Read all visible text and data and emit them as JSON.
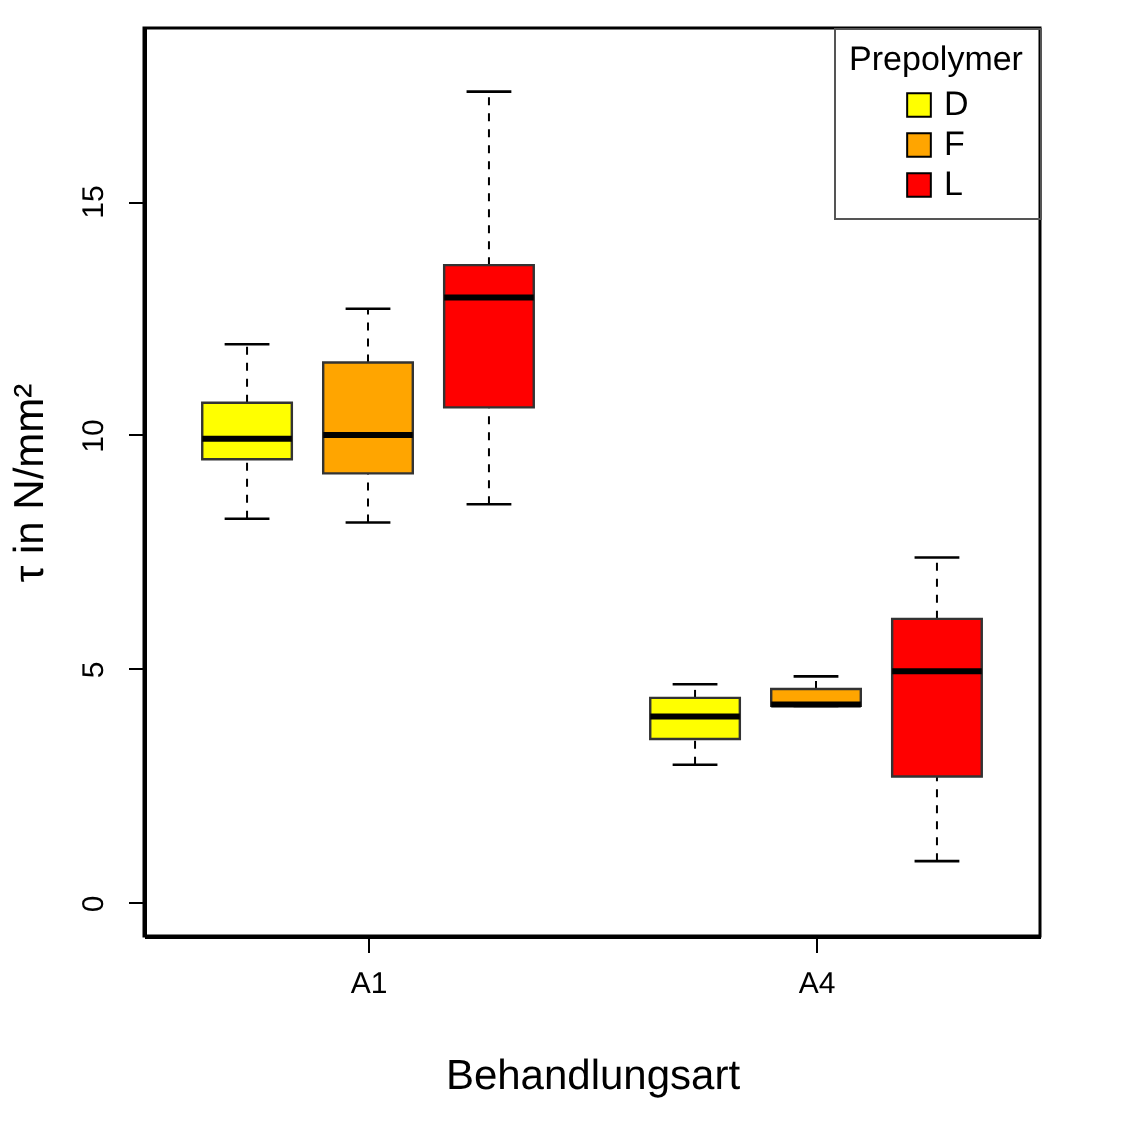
{
  "chart_data": {
    "type": "box",
    "xlabel": "Behandlungsart",
    "ylabel": "τ in N/mm²",
    "legend_title": "Prepolymer",
    "legend": "top right",
    "categories": [
      "A1",
      "A4"
    ],
    "ylim": [
      -0.71,
      18.7
    ],
    "yticks": [
      0,
      5,
      10,
      15
    ],
    "series": [
      {
        "name": "D",
        "color": "#ffff00",
        "boxes": [
          {
            "low": 8.21,
            "q1": 9.48,
            "median": 9.92,
            "q3": 10.69,
            "high": 11.94
          },
          {
            "low": 2.95,
            "q1": 3.5,
            "median": 3.98,
            "q3": 4.38,
            "high": 4.67
          }
        ]
      },
      {
        "name": "F",
        "color": "#ffa500",
        "boxes": [
          {
            "low": 8.13,
            "q1": 9.18,
            "median": 10.0,
            "q3": 11.55,
            "high": 12.7
          },
          {
            "low": 4.21,
            "q1": 4.21,
            "median": 4.24,
            "q3": 4.57,
            "high": 4.84
          }
        ]
      },
      {
        "name": "L",
        "color": "#ff0000",
        "boxes": [
          {
            "low": 8.52,
            "q1": 10.59,
            "median": 12.94,
            "q3": 13.63,
            "high": 17.34
          },
          {
            "low": 0.89,
            "q1": 2.7,
            "median": 4.95,
            "q3": 6.07,
            "high": 7.38
          }
        ]
      }
    ]
  }
}
